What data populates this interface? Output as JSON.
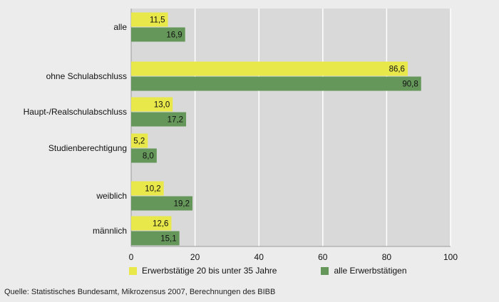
{
  "chart_data": {
    "type": "bar",
    "orientation": "horizontal",
    "categories": [
      "alle",
      "ohne Schulabschluss",
      "Haupt-/Realschulabschluss",
      "Studienberechtigung",
      "weiblich",
      "männlich"
    ],
    "series": [
      {
        "name": "Erwerbstätige 20 bis unter 35 Jahre",
        "values": [
          11.5,
          86.6,
          13.0,
          5.2,
          10.2,
          12.6
        ],
        "labels": [
          "11,5",
          "86,6",
          "13,0",
          "5,2",
          "10,2",
          "12,6"
        ],
        "color": "#e8e84a"
      },
      {
        "name": "alle Erwerbstätigen",
        "values": [
          16.9,
          90.8,
          17.2,
          8.0,
          19.2,
          15.1
        ],
        "labels": [
          "16,9",
          "90,8",
          "17,2",
          "8,0",
          "19,2",
          "15,1"
        ],
        "color": "#65975a"
      }
    ],
    "xlim": [
      0,
      100
    ],
    "xticks": [
      0,
      20,
      40,
      60,
      80,
      100
    ],
    "grid": true,
    "legend_position": "bottom",
    "plot_background": "#d9d9d9"
  },
  "source": "Quelle: Statistisches Bundesamt, Mikrozensus 2007, Berechnungen des BIBB"
}
